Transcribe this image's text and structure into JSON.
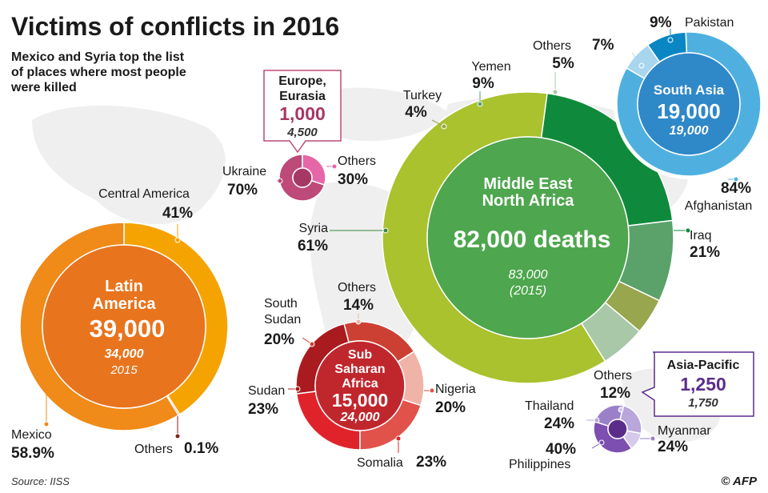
{
  "title": "Victims of conflicts in 2016",
  "subtitle": [
    "Mexico and Syria top the list",
    "of places where most people",
    "were killed"
  ],
  "source": "Source: IISS",
  "credit": "© AFP",
  "colors": {
    "mena_center": "#4ea64e",
    "mena_syria": "#a9c22d",
    "mena_iraq": "#0f8a3c",
    "mena_yemen": "#5aa26a",
    "mena_turkey": "#98a64d",
    "mena_others": "#a8c8a8",
    "sa_center": "#2f88c8",
    "sa_afghanistan": "#4fb0e0",
    "sa_pakistan": "#0a86c4",
    "sa_others": "#a9d6ef",
    "la_center": "#e8741e",
    "la_mexico": "#f08a18",
    "la_central": "#f5a300",
    "la_others": "#8a1e1e",
    "ssa_center": "#c0272d",
    "ssa_somalia": "#e0232a",
    "ssa_sudan": "#a91b1f",
    "ssa_ssudan": "#cc4034",
    "ssa_others": "#f0b3a8",
    "ssa_nigeria": "#e0524a",
    "eu_center": "#a63864",
    "eu_ukraine": "#bd4a78",
    "eu_others": "#e667a7",
    "ap_center": "#5b2d8a",
    "ap_philippines": "#7c4fb0",
    "ap_myanmar": "#9a80c8",
    "ap_thailand": "#b9a6da",
    "ap_others": "#d6caea",
    "map": "#efefef"
  },
  "chart_data": [
    {
      "type": "pie",
      "region": [
        "Middle East",
        "North Africa"
      ],
      "value_label": "82,000 deaths",
      "value": 82000,
      "previous": "83,000",
      "previous_year": "(2015)",
      "slices": [
        {
          "name": "Syria",
          "value": 61,
          "label": "61%"
        },
        {
          "name": "Iraq",
          "value": 21,
          "label": "21%"
        },
        {
          "name": "Yemen",
          "value": 9,
          "label": "9%"
        },
        {
          "name": "Turkey",
          "value": 4,
          "label": "4%"
        },
        {
          "name": "Others",
          "value": 5,
          "label": "5%"
        }
      ]
    },
    {
      "type": "pie",
      "region": [
        "South Asia"
      ],
      "value_label": "19,000",
      "value": 19000,
      "previous": "19,000",
      "slices": [
        {
          "name": "Afghanistan",
          "value": 84,
          "label": "84%"
        },
        {
          "name": "Pakistan",
          "value": 9,
          "label": "9%"
        },
        {
          "name": "",
          "value": 7,
          "label": "7%"
        }
      ]
    },
    {
      "type": "pie",
      "region": [
        "Latin",
        "America"
      ],
      "value_label": "39,000",
      "value": 39000,
      "previous": "34,000",
      "previous_year": "2015",
      "slices": [
        {
          "name": "Mexico",
          "value": 58.9,
          "label": "58.9%"
        },
        {
          "name": "Central America",
          "value": 41,
          "label": "41%"
        },
        {
          "name": "Others",
          "value": 0.1,
          "label": "0.1%"
        }
      ]
    },
    {
      "type": "pie",
      "region": [
        "Sub",
        "Saharan",
        "Africa"
      ],
      "value_label": "15,000",
      "value": 15000,
      "previous": "24,000",
      "slices": [
        {
          "name": "Somalia",
          "value": 23,
          "label": "23%"
        },
        {
          "name": "Sudan",
          "value": 23,
          "label": "23%"
        },
        {
          "name": "South Sudan",
          "value": 20,
          "label": "20%"
        },
        {
          "name": "Others",
          "value": 14,
          "label": "14%"
        },
        {
          "name": "Nigeria",
          "value": 20,
          "label": "20%"
        }
      ]
    },
    {
      "type": "pie",
      "region": [
        "Europe,",
        "Eurasia"
      ],
      "value_label": "1,000",
      "value": 1000,
      "previous": "4,500",
      "slices": [
        {
          "name": "Ukraine",
          "value": 70,
          "label": "70%"
        },
        {
          "name": "Others",
          "value": 30,
          "label": "30%"
        }
      ]
    },
    {
      "type": "pie",
      "region": [
        "Asia-Pacific"
      ],
      "value_label": "1,250",
      "value": 1250,
      "previous": "1,750",
      "slices": [
        {
          "name": "Philippines",
          "value": 40,
          "label": "40%"
        },
        {
          "name": "Myanmar",
          "value": 24,
          "label": "24%"
        },
        {
          "name": "Thailand",
          "value": 24,
          "label": "24%"
        },
        {
          "name": "Others",
          "value": 12,
          "label": "12%"
        }
      ]
    }
  ]
}
